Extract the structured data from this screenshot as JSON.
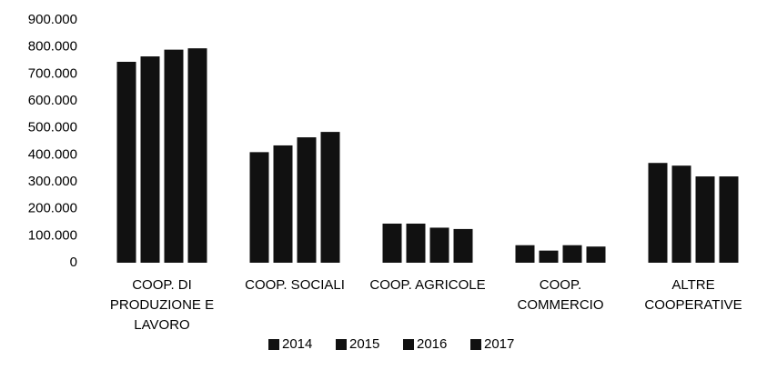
{
  "chart_data": {
    "type": "bar",
    "categories": [
      "COOP. DI PRODUZIONE E LAVORO",
      "COOP. SOCIALI",
      "COOP. AGRICOLE",
      "COOP. COMMERCIO",
      "ALTRE COOPERATIVE"
    ],
    "series": [
      {
        "name": "2014",
        "color": "#111111",
        "values": [
          745000,
          410000,
          145000,
          65000,
          370000
        ]
      },
      {
        "name": "2015",
        "color": "#111111",
        "values": [
          765000,
          435000,
          145000,
          45000,
          360000
        ]
      },
      {
        "name": "2016",
        "color": "#111111",
        "values": [
          790000,
          465000,
          130000,
          65000,
          320000
        ]
      },
      {
        "name": "2017",
        "color": "#111111",
        "values": [
          795000,
          485000,
          125000,
          60000,
          320000
        ]
      }
    ],
    "ylim": [
      0,
      900000
    ],
    "yticks": [
      0,
      {
        "value": 100000,
        "label": "100.000"
      },
      {
        "value": 200000,
        "label": "200.000"
      },
      {
        "value": 300000,
        "label": "300.000"
      },
      {
        "value": 400000,
        "label": "400.000"
      },
      {
        "value": 500000,
        "label": "500.000"
      },
      {
        "value": 600000,
        "label": "600.000"
      },
      {
        "value": 700000,
        "label": "700.000"
      },
      {
        "value": 800000,
        "label": "800.000"
      },
      {
        "value": 900000,
        "label": "900.000"
      }
    ],
    "grid": false,
    "legend": "bottom"
  }
}
